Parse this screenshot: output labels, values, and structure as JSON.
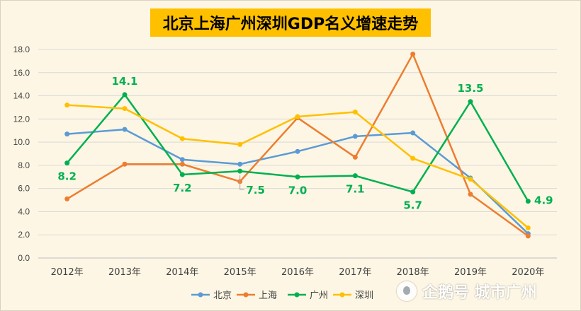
{
  "chart_data": {
    "type": "line",
    "title": "北京上海广州深圳GDP名义增速走势",
    "categories": [
      "2012年",
      "2013年",
      "2014年",
      "2015年",
      "2016年",
      "2017年",
      "2018年",
      "2019年",
      "2020年"
    ],
    "ylim": [
      0,
      18
    ],
    "yticks": [
      "0.0",
      "2.0",
      "4.0",
      "6.0",
      "8.0",
      "10.0",
      "12.0",
      "14.0",
      "16.0",
      "18.0"
    ],
    "grid": true,
    "legend_position": "bottom",
    "series": [
      {
        "name": "北京",
        "color": "#5b9bd5",
        "values": [
          10.7,
          11.1,
          8.5,
          8.1,
          9.2,
          10.5,
          10.8,
          6.9,
          2.1
        ]
      },
      {
        "name": "上海",
        "color": "#ed7d31",
        "values": [
          5.1,
          8.1,
          8.1,
          6.6,
          12.1,
          8.7,
          17.6,
          5.5,
          1.9
        ]
      },
      {
        "name": "广州",
        "color": "#00b050",
        "values": [
          8.2,
          14.1,
          7.2,
          7.5,
          7.0,
          7.1,
          5.7,
          13.5,
          4.9
        ],
        "labels": [
          "8.2",
          "14.1",
          "7.2",
          "7.5",
          "7.0",
          "7.1",
          "5.7",
          "13.5",
          "4.9"
        ]
      },
      {
        "name": "深圳",
        "color": "#ffc000",
        "values": [
          13.2,
          12.9,
          10.3,
          9.8,
          12.2,
          12.6,
          8.6,
          6.8,
          2.6
        ]
      }
    ]
  },
  "watermark": {
    "text": "企鹅号 城市广州",
    "logo_icon": "penguin-icon"
  }
}
